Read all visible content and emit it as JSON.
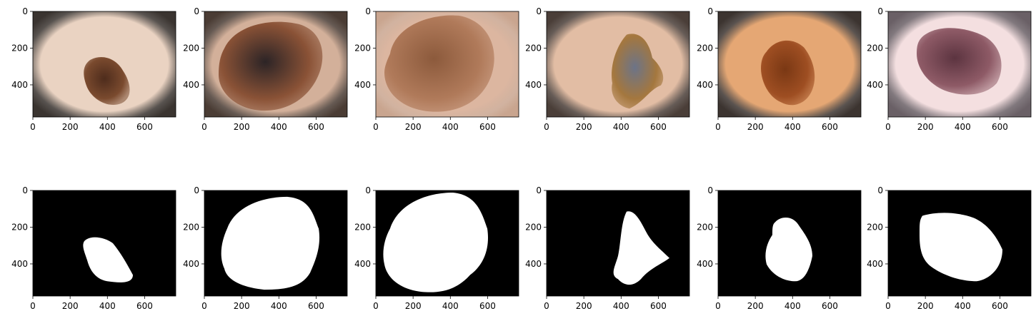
{
  "figure": {
    "layout": {
      "rows": 2,
      "cols": 6
    },
    "axes": {
      "x_ticks": [
        "0",
        "200",
        "400",
        "600"
      ],
      "y_ticks": [
        "0",
        "200",
        "400"
      ],
      "x_tick_values": [
        0,
        200,
        400,
        600
      ],
      "y_tick_values": [
        0,
        200,
        400
      ],
      "xlim": [
        0,
        767
      ],
      "ylim": [
        575,
        0
      ]
    },
    "images": [
      {
        "kind": "dermoscopy",
        "skin": "#ead3c2",
        "rim": "#3a3430",
        "lesion": "#7a4a2e",
        "lesion_dark": "#4e2c1c"
      },
      {
        "kind": "dermoscopy",
        "skin": "#d3b09a",
        "rim": "#4a3c34",
        "lesion": "#8a5236",
        "lesion_dark": "#2c2426"
      },
      {
        "kind": "dermoscopy",
        "skin": "#dcb6a0",
        "rim": "#c9a58f",
        "lesion": "#b07a5a",
        "lesion_dark": "#8c5a3c"
      },
      {
        "kind": "dermoscopy",
        "skin": "#e2bda4",
        "rim": "#4a3e38",
        "lesion": "#a4773e",
        "lesion_dark": "#6c7488"
      },
      {
        "kind": "dermoscopy",
        "skin": "#e5a774",
        "rim": "#3c3430",
        "lesion": "#9e4e22",
        "lesion_dark": "#7a3814"
      },
      {
        "kind": "dermoscopy",
        "skin": "#f4dfe0",
        "rim": "#6a6066",
        "lesion": "#8e5a66",
        "lesion_dark": "#5c3440"
      },
      {
        "kind": "mask"
      },
      {
        "kind": "mask"
      },
      {
        "kind": "mask"
      },
      {
        "kind": "mask"
      },
      {
        "kind": "mask"
      },
      {
        "kind": "mask"
      }
    ]
  }
}
